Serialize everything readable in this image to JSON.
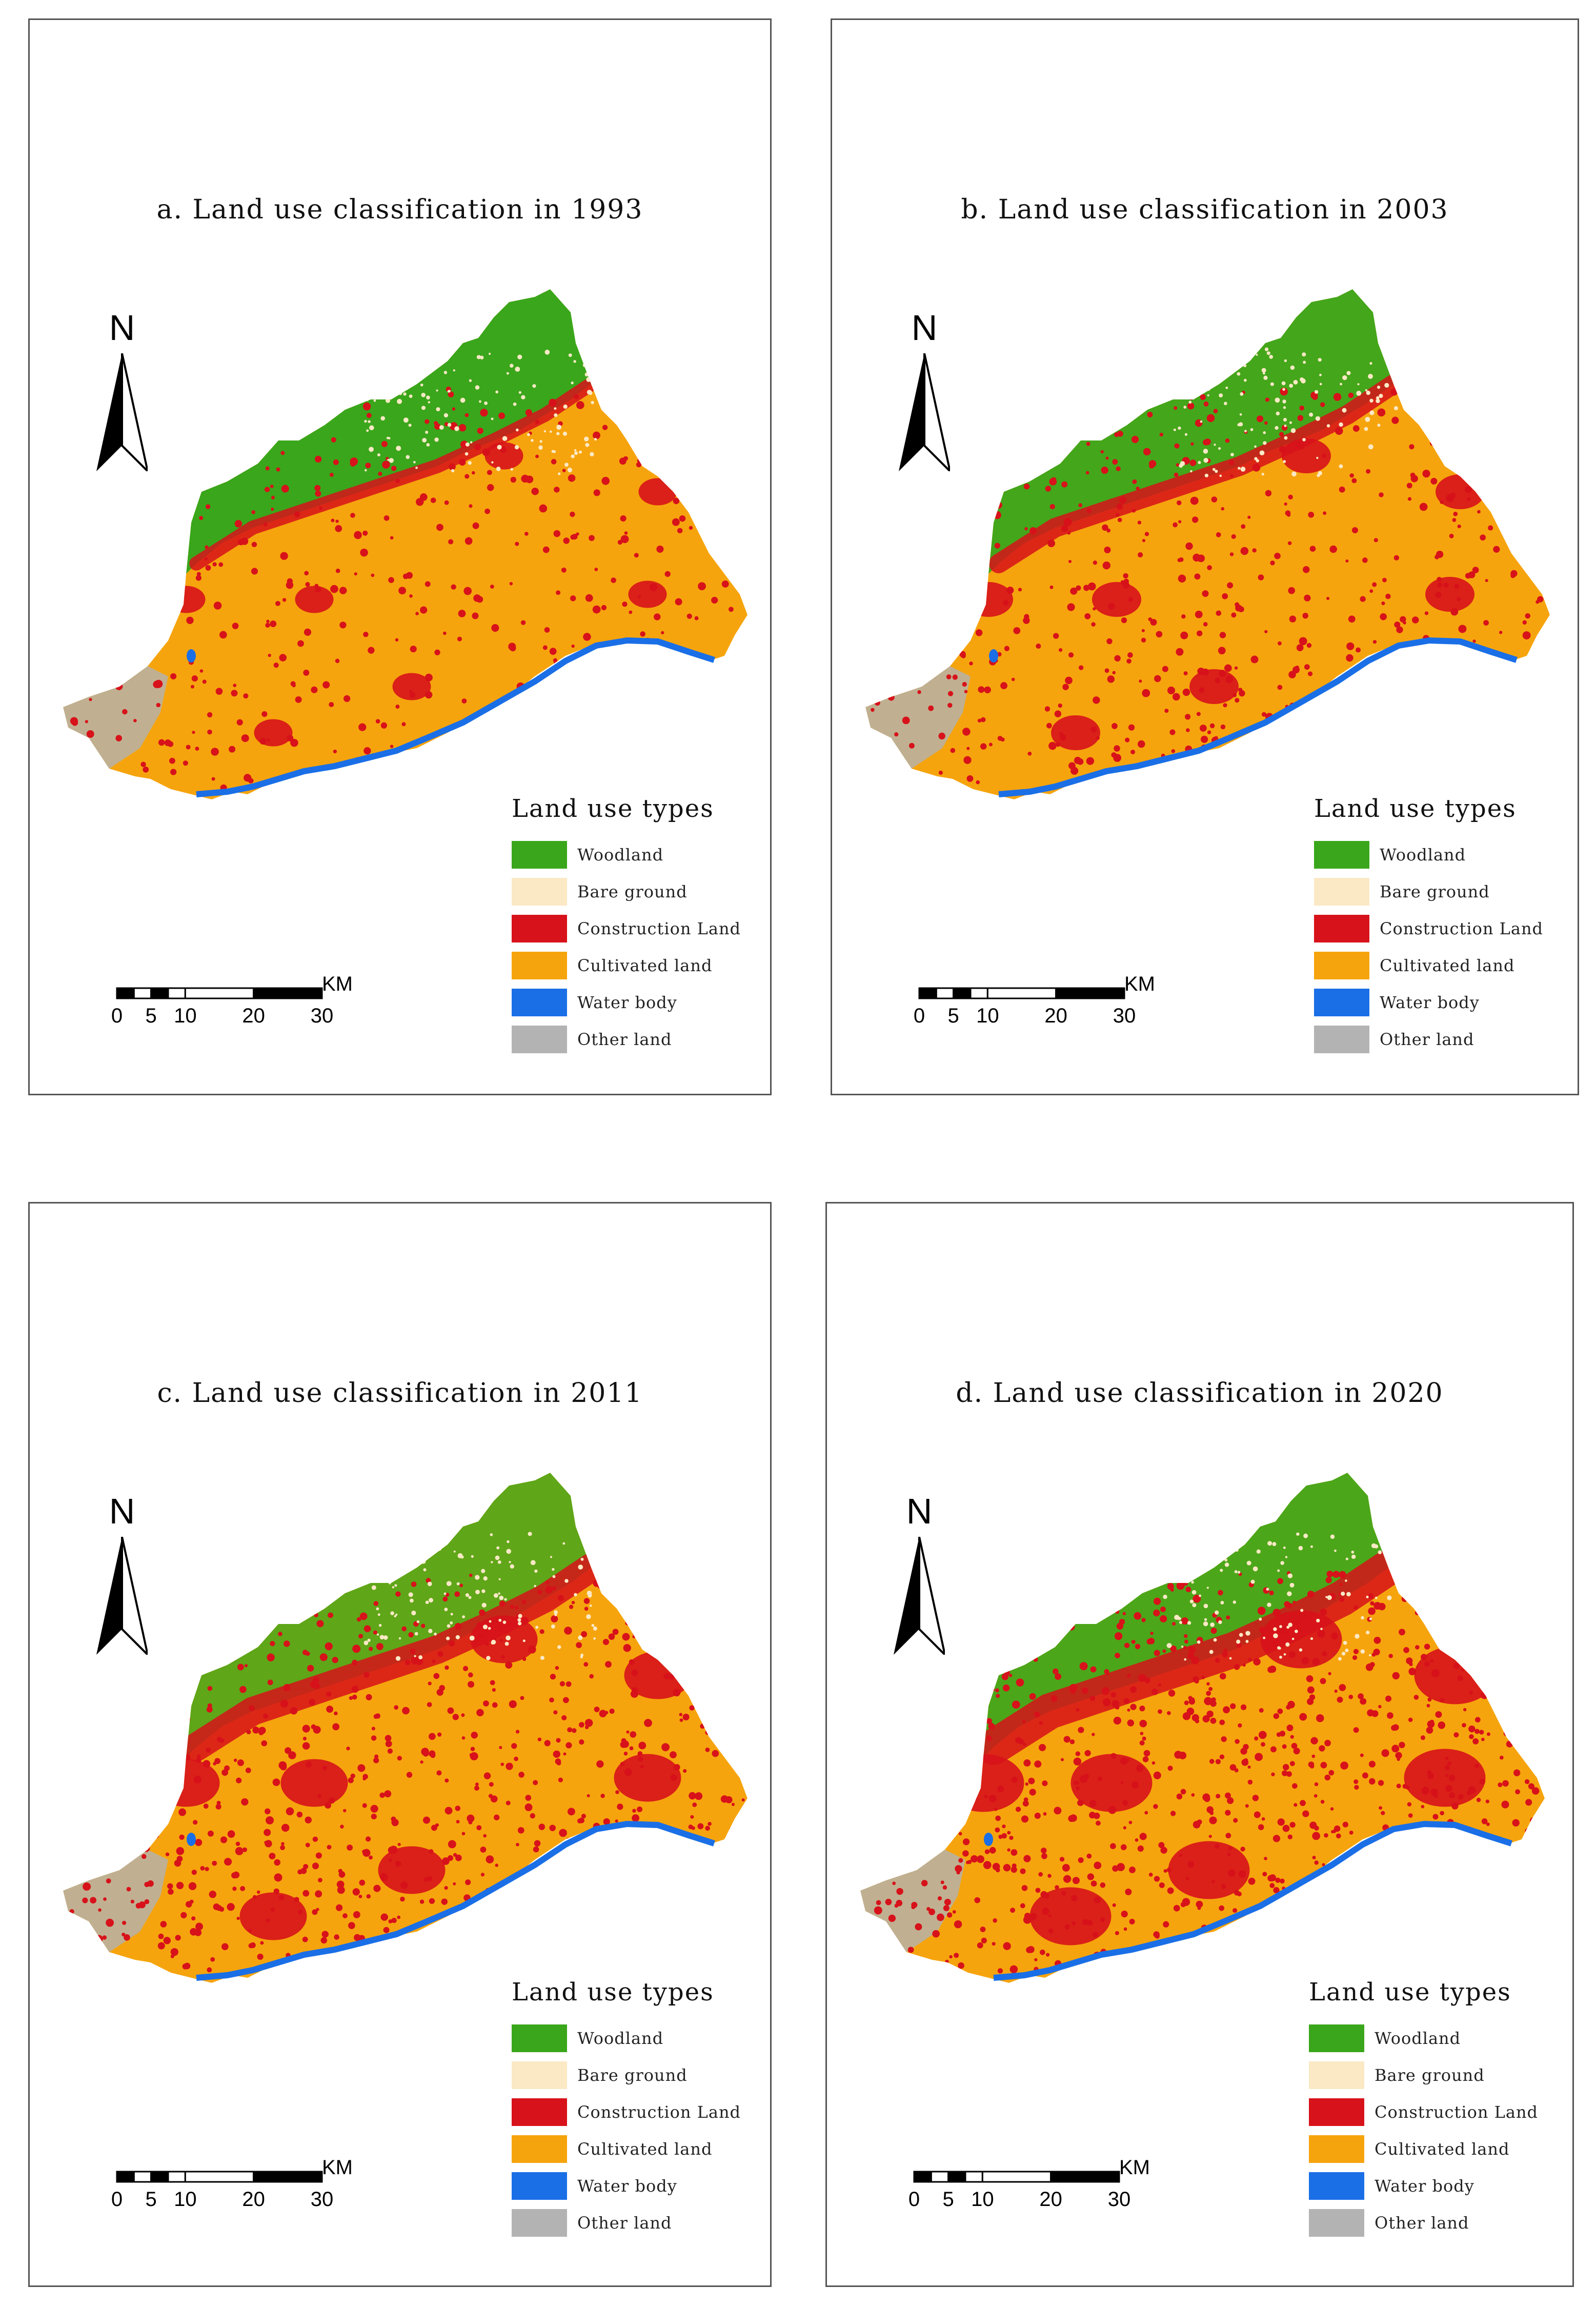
{
  "legend": {
    "title": "Land use types",
    "items": [
      {
        "label": "Woodland",
        "color": "#3aa61b"
      },
      {
        "label": "Bare ground",
        "color": "#fbe9c5"
      },
      {
        "label": "Construction Land",
        "color": "#d7121a"
      },
      {
        "label": "Cultivated land",
        "color": "#f6a40d"
      },
      {
        "label": "Water body",
        "color": "#1a6fe6"
      },
      {
        "label": "Other land",
        "color": "#b3b3b3"
      }
    ]
  },
  "north_label": "N",
  "scale": {
    "unit": "KM",
    "ticks": [
      "0",
      "5",
      "10",
      "20",
      "30"
    ]
  },
  "panels": [
    {
      "title": "a. Land use classification in 1993",
      "year": "1993",
      "construction_intensity": 0.25,
      "woodland_extent": 1.0
    },
    {
      "title": "b. Land use classification in 2003",
      "year": "2003",
      "construction_intensity": 0.4,
      "woodland_extent": 0.95
    },
    {
      "title": "c. Land use classification in 2011",
      "year": "2011",
      "construction_intensity": 0.65,
      "woodland_extent": 0.8
    },
    {
      "title": "d. Land use classification in 2020",
      "year": "2020",
      "construction_intensity": 0.85,
      "woodland_extent": 0.9
    }
  ]
}
